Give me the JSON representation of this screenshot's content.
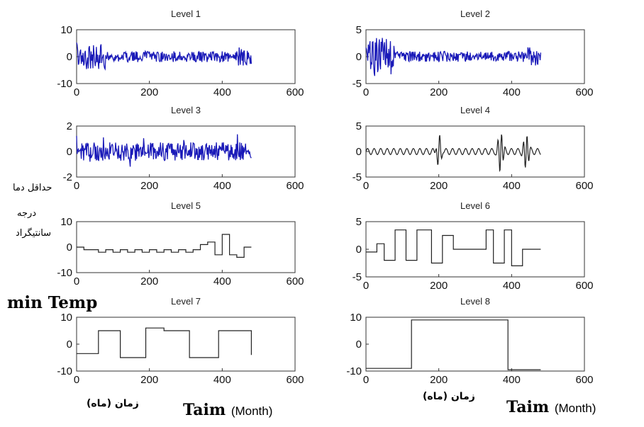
{
  "chart_data": [
    {
      "type": "line",
      "title": "Level 1",
      "xlim": [
        0,
        600
      ],
      "xticks": [
        "0",
        "200",
        "400",
        "600"
      ],
      "ylim": [
        -10,
        10
      ],
      "yticks": [
        "10",
        "0",
        "-10"
      ],
      "color": "#1a1ab8",
      "signal": "noise",
      "x_end": 480
    },
    {
      "type": "line",
      "title": "Level 2",
      "xlim": [
        0,
        600
      ],
      "xticks": [
        "0",
        "200",
        "400",
        "600"
      ],
      "ylim": [
        -5,
        5
      ],
      "yticks": [
        "5",
        "0",
        "-5"
      ],
      "color": "#1a1ab8",
      "signal": "noise",
      "x_end": 480
    },
    {
      "type": "line",
      "title": "Level 3",
      "xlim": [
        0,
        600
      ],
      "xticks": [
        "0",
        "200",
        "400",
        "600"
      ],
      "ylim": [
        -2,
        2
      ],
      "yticks": [
        "2",
        "0",
        "-2"
      ],
      "color": "#1a1ab8",
      "signal": "noise",
      "x_end": 480
    },
    {
      "type": "line",
      "title": "Level 4",
      "xlim": [
        0,
        600
      ],
      "xticks": [
        "0",
        "200",
        "400",
        "600"
      ],
      "ylim": [
        -5,
        5
      ],
      "yticks": [
        "5",
        "0",
        "-5"
      ],
      "color": "#222222",
      "signal": "oscillation",
      "x_end": 480
    },
    {
      "type": "line",
      "title": "Level 5",
      "xlim": [
        0,
        600
      ],
      "xticks": [
        "0",
        "200",
        "400",
        "600"
      ],
      "ylim": [
        -10,
        10
      ],
      "yticks": [
        "10",
        "0",
        "-10"
      ],
      "color": "#222222",
      "signal": "square-wave",
      "x": [
        0,
        20,
        40,
        60,
        80,
        100,
        120,
        140,
        160,
        180,
        200,
        220,
        240,
        260,
        280,
        300,
        320,
        340,
        360,
        380,
        400,
        420,
        440,
        460,
        480
      ],
      "y": [
        0,
        -1,
        -1,
        -2,
        -1,
        -2,
        -1,
        -2,
        -1,
        -2,
        -1,
        -2,
        -1,
        -2,
        -1,
        -2,
        -1,
        1,
        2,
        -3,
        5,
        -3,
        -4,
        0,
        0
      ]
    },
    {
      "type": "line",
      "title": "Level 6",
      "xlim": [
        0,
        600
      ],
      "xticks": [
        "0",
        "200",
        "400",
        "600"
      ],
      "ylim": [
        -5,
        5
      ],
      "yticks": [
        "5",
        "0",
        "-5"
      ],
      "color": "#222222",
      "signal": "step",
      "x": [
        0,
        30,
        50,
        80,
        110,
        140,
        180,
        210,
        240,
        270,
        300,
        330,
        350,
        380,
        400,
        430,
        450,
        480
      ],
      "y": [
        -0.5,
        1,
        -2,
        3.5,
        -2,
        3.5,
        -2.5,
        2.5,
        0,
        0,
        0,
        3.5,
        -2.5,
        3.5,
        -3,
        0,
        0,
        0
      ]
    },
    {
      "type": "line",
      "title": "Level 7",
      "xlim": [
        0,
        600
      ],
      "xticks": [
        "0",
        "200",
        "400",
        "600"
      ],
      "ylim": [
        -10,
        10
      ],
      "yticks": [
        "10",
        "0",
        "-10"
      ],
      "color": "#222222",
      "signal": "step",
      "x": [
        0,
        60,
        120,
        190,
        240,
        310,
        390,
        480
      ],
      "y": [
        -3.5,
        5,
        -5,
        6,
        5,
        -5,
        5,
        -4
      ]
    },
    {
      "type": "line",
      "title": "Level 8",
      "xlim": [
        0,
        600
      ],
      "xticks": [
        "0",
        "200",
        "400",
        "600"
      ],
      "ylim": [
        -10,
        10
      ],
      "yticks": [
        "10",
        "0",
        "-10"
      ],
      "color": "#222222",
      "signal": "step",
      "x": [
        0,
        125,
        390,
        480
      ],
      "y": [
        -9,
        9,
        -9.5,
        -9.5
      ]
    }
  ],
  "annotations": {
    "left_persian": [
      "حداقل دما",
      "درجه",
      "سانتیگراد"
    ],
    "min_temp": "min Temp",
    "xaxis_persian": "زمان (ماه)",
    "taim": "Taim",
    "month": "(Month)"
  }
}
